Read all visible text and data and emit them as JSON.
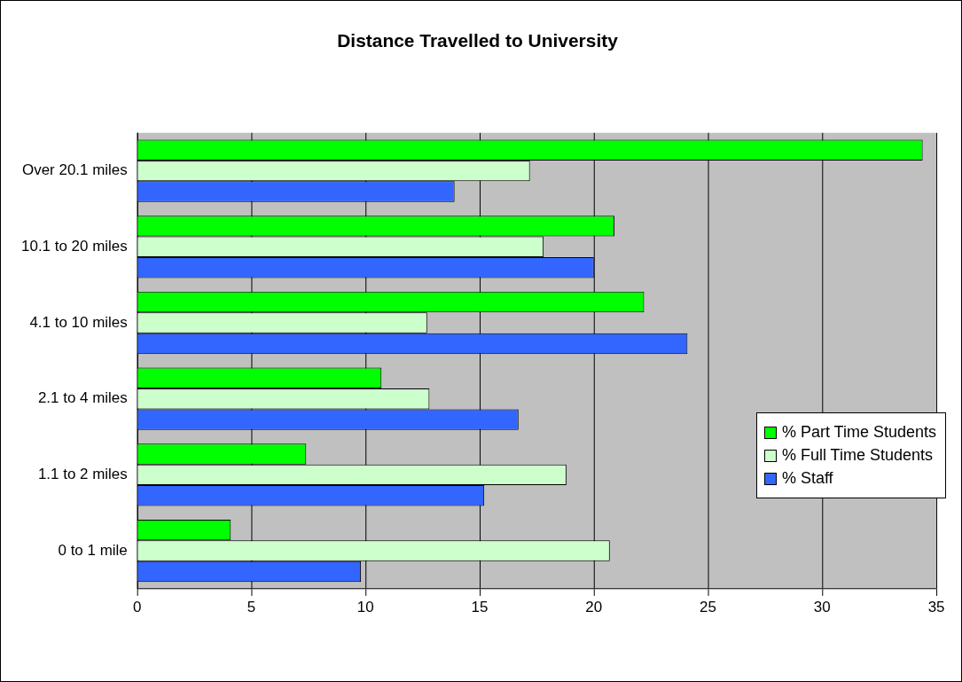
{
  "chart_data": {
    "type": "bar",
    "orientation": "horizontal",
    "title": "Distance Travelled to University",
    "categories": [
      "Over 20.1 miles",
      "10.1 to 20 miles",
      "4.1 to 10 miles",
      "2.1 to 4 miles",
      "1.1 to 2 miles",
      "0 to 1 mile"
    ],
    "series": [
      {
        "name": "% Part Time Students",
        "color": "#00ff00",
        "values": [
          34.4,
          20.9,
          22.2,
          10.7,
          7.4,
          4.1
        ]
      },
      {
        "name": "% Full Time Students",
        "color": "#ccffcc",
        "values": [
          17.2,
          17.8,
          12.7,
          12.8,
          18.8,
          20.7
        ]
      },
      {
        "name": "% Staff",
        "color": "#3366ff",
        "values": [
          13.9,
          20.0,
          24.1,
          16.7,
          15.2,
          9.8
        ]
      }
    ],
    "xlim": [
      0,
      35
    ],
    "xticks": [
      0,
      5,
      10,
      15,
      20,
      25,
      30,
      35
    ],
    "grid": "x",
    "legend": "right"
  }
}
